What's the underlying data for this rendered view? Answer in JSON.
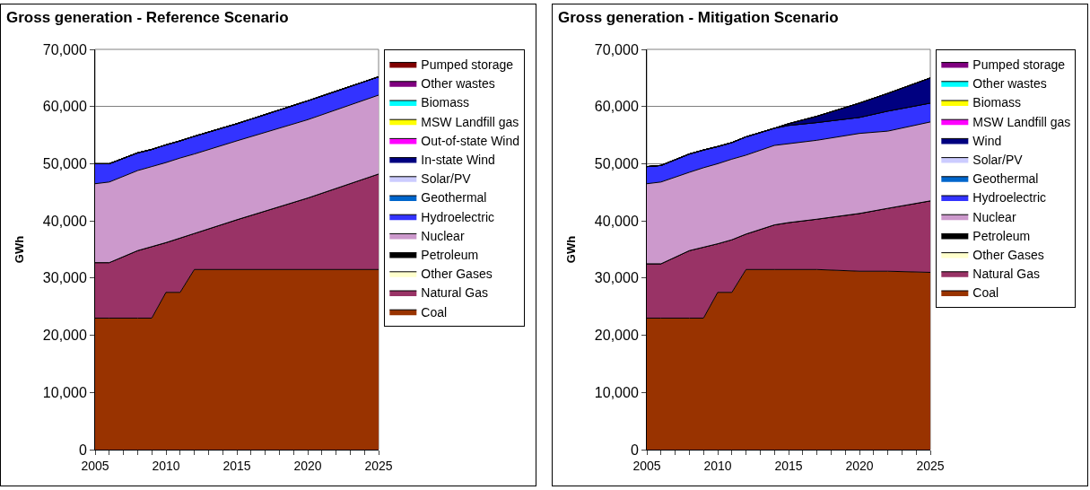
{
  "chart_data": [
    {
      "type": "area",
      "stacked": true,
      "title": "Gross generation - Reference Scenario",
      "ylabel": "GWh",
      "grid": "y",
      "legend": "right",
      "x": [
        2005,
        2006,
        2008,
        2009,
        2010,
        2011,
        2012,
        2015,
        2020,
        2025
      ],
      "xlim": [
        2005,
        2025
      ],
      "xticks": [
        2005,
        2010,
        2015,
        2020,
        2025
      ],
      "ylim": [
        0,
        70000
      ],
      "yticks": [
        {
          "value": 0,
          "label": "0"
        },
        {
          "value": 10000,
          "label": "10,000"
        },
        {
          "value": 20000,
          "label": "20,000"
        },
        {
          "value": 30000,
          "label": "30,000"
        },
        {
          "value": 40000,
          "label": "40,000"
        },
        {
          "value": 50000,
          "label": "50,000"
        },
        {
          "value": 60000,
          "label": "60,000"
        },
        {
          "value": 70000,
          "label": "70,000"
        }
      ],
      "series": [
        {
          "name": "Coal",
          "color": "#993300",
          "values": [
            23000,
            23000,
            23000,
            23000,
            27500,
            27500,
            31500,
            31500,
            31500,
            31500
          ]
        },
        {
          "name": "Natural Gas",
          "color": "#993366",
          "values": [
            9700,
            9700,
            11800,
            12500,
            8700,
            9500,
            6300,
            8700,
            12500,
            16700
          ]
        },
        {
          "name": "Other Gases",
          "color": "#ffffcc",
          "values": [
            null,
            null,
            null,
            null,
            null,
            null,
            null,
            null,
            null,
            null
          ]
        },
        {
          "name": "Petroleum",
          "color": "#000000",
          "values": [
            null,
            null,
            null,
            null,
            null,
            null,
            null,
            null,
            null,
            null
          ]
        },
        {
          "name": "Nuclear",
          "color": "#cc99cc",
          "values": [
            13800,
            14100,
            14000,
            14000,
            14000,
            14000,
            13900,
            13800,
            13700,
            13800
          ]
        },
        {
          "name": "Hydroelectric",
          "color": "#3333ff",
          "values": [
            3500,
            3200,
            3100,
            3000,
            3100,
            3000,
            3100,
            3000,
            3300,
            3200
          ]
        },
        {
          "name": "Geothermal",
          "color": "#0066cc",
          "values": [
            null,
            null,
            null,
            null,
            null,
            null,
            null,
            null,
            null,
            null
          ]
        },
        {
          "name": "Solar/PV",
          "color": "#ccccff",
          "values": [
            null,
            null,
            null,
            null,
            null,
            null,
            null,
            null,
            null,
            null
          ]
        },
        {
          "name": "In-state Wind",
          "color": "#000080",
          "values": [
            null,
            null,
            null,
            null,
            null,
            null,
            null,
            null,
            null,
            null
          ]
        },
        {
          "name": "Out-of-state Wind",
          "color": "#ff00ff",
          "values": [
            null,
            null,
            null,
            null,
            null,
            null,
            null,
            null,
            null,
            null
          ]
        },
        {
          "name": "MSW Landfill gas",
          "color": "#ffff00",
          "values": [
            null,
            null,
            null,
            null,
            null,
            null,
            null,
            null,
            null,
            null
          ]
        },
        {
          "name": "Biomass",
          "color": "#00ffff",
          "values": [
            null,
            null,
            null,
            null,
            null,
            null,
            null,
            null,
            null,
            null
          ]
        },
        {
          "name": "Other wastes",
          "color": "#800080",
          "values": [
            null,
            null,
            null,
            null,
            null,
            null,
            null,
            null,
            null,
            null
          ]
        },
        {
          "name": "Pumped storage",
          "color": "#800000",
          "values": [
            null,
            null,
            null,
            null,
            null,
            null,
            null,
            null,
            null,
            null
          ]
        }
      ]
    },
    {
      "type": "area",
      "stacked": true,
      "title": "Gross generation - Mitigation Scenario",
      "ylabel": "GWh",
      "grid": "y",
      "legend": "right",
      "x": [
        2005,
        2006,
        2008,
        2009,
        2010,
        2011,
        2012,
        2014,
        2015,
        2017,
        2020,
        2022,
        2025
      ],
      "xlim": [
        2005,
        2025
      ],
      "xticks": [
        2005,
        2010,
        2015,
        2020,
        2025
      ],
      "ylim": [
        0,
        70000
      ],
      "yticks": [
        {
          "value": 0,
          "label": "0"
        },
        {
          "value": 10000,
          "label": "10,000"
        },
        {
          "value": 20000,
          "label": "20,000"
        },
        {
          "value": 30000,
          "label": "30,000"
        },
        {
          "value": 40000,
          "label": "40,000"
        },
        {
          "value": 50000,
          "label": "50,000"
        },
        {
          "value": 60000,
          "label": "60,000"
        },
        {
          "value": 70000,
          "label": "70,000"
        }
      ],
      "series": [
        {
          "name": "Coal",
          "color": "#993300",
          "values": [
            23000,
            23000,
            23000,
            23000,
            27500,
            27500,
            31500,
            31500,
            31500,
            31500,
            31200,
            31200,
            31000
          ]
        },
        {
          "name": "Natural Gas",
          "color": "#993366",
          "values": [
            9500,
            9500,
            11800,
            12400,
            8500,
            9200,
            6200,
            7800,
            8200,
            8800,
            10100,
            11000,
            12500
          ]
        },
        {
          "name": "Other Gases",
          "color": "#ffffcc",
          "values": [
            null,
            null,
            null,
            null,
            null,
            null,
            null,
            null,
            null,
            null,
            null,
            null,
            null
          ]
        },
        {
          "name": "Petroleum",
          "color": "#000000",
          "values": [
            null,
            null,
            null,
            null,
            null,
            null,
            null,
            null,
            null,
            null,
            null,
            null,
            null
          ]
        },
        {
          "name": "Nuclear",
          "color": "#cc99cc",
          "values": [
            14000,
            14300,
            13700,
            13900,
            14000,
            14100,
            13800,
            13900,
            13800,
            13800,
            14000,
            13500,
            13800
          ]
        },
        {
          "name": "Hydroelectric",
          "color": "#3333ff",
          "values": [
            3000,
            2900,
            3200,
            3100,
            3000,
            2900,
            3200,
            3000,
            3200,
            3100,
            2800,
            3500,
            3300
          ]
        },
        {
          "name": "Geothermal",
          "color": "#0066cc",
          "values": [
            null,
            null,
            null,
            null,
            null,
            null,
            null,
            null,
            null,
            null,
            null,
            null,
            null
          ]
        },
        {
          "name": "Solar/PV",
          "color": "#ccccff",
          "values": [
            null,
            null,
            null,
            null,
            null,
            null,
            null,
            null,
            null,
            null,
            null,
            null,
            null
          ]
        },
        {
          "name": "Wind",
          "color": "#000080",
          "values": [
            0,
            0,
            0,
            0,
            0,
            0,
            0,
            0,
            300,
            1100,
            2500,
            3100,
            4400
          ]
        },
        {
          "name": "MSW Landfill gas",
          "color": "#ff00ff",
          "values": [
            null,
            null,
            null,
            null,
            null,
            null,
            null,
            null,
            null,
            null,
            null,
            null,
            null
          ]
        },
        {
          "name": "Biomass",
          "color": "#ffff00",
          "values": [
            null,
            null,
            null,
            null,
            null,
            null,
            null,
            null,
            null,
            null,
            null,
            null,
            null
          ]
        },
        {
          "name": "Other wastes",
          "color": "#00ffff",
          "values": [
            null,
            null,
            null,
            null,
            null,
            null,
            null,
            null,
            null,
            null,
            null,
            null,
            null
          ]
        },
        {
          "name": "Pumped storage",
          "color": "#800080",
          "values": [
            null,
            null,
            null,
            null,
            null,
            null,
            null,
            null,
            null,
            null,
            null,
            null,
            null
          ]
        }
      ]
    }
  ]
}
